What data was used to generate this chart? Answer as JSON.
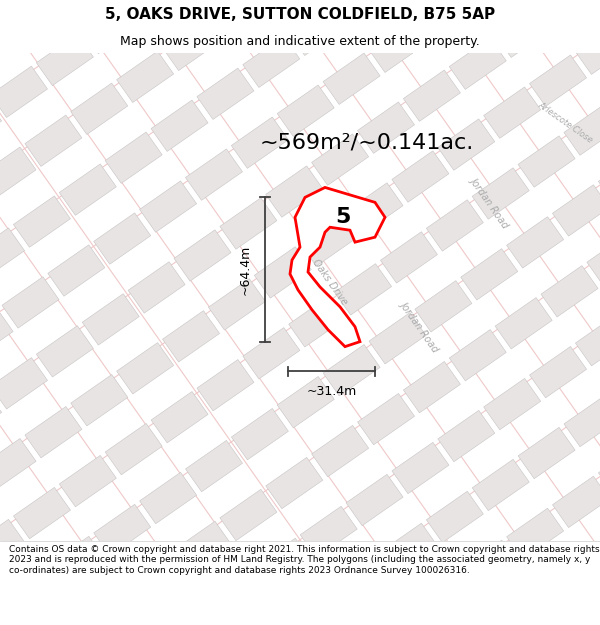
{
  "title_line1": "5, OAKS DRIVE, SUTTON COLDFIELD, B75 5AP",
  "title_line2": "Map shows position and indicative extent of the property.",
  "area_text": "~569m²/~0.141ac.",
  "dim_height": "~64.4m",
  "dim_width": "~31.4m",
  "label_number": "5",
  "road_label1": "Oaks Drive",
  "road_label2": "Jordan Road",
  "road_label3": "Jordan Road",
  "road_label4": "Arlescote Close",
  "footer_text": "Contains OS data © Crown copyright and database right 2021. This information is subject to Crown copyright and database rights 2023 and is reproduced with the permission of HM Land Registry. The polygons (including the associated geometry, namely x, y co-ordinates) are subject to Crown copyright and database rights 2023 Ordnance Survey 100026316.",
  "map_bg": "#faf8f8",
  "block_color_light": "#e8e4e4",
  "block_color_dark": "#d4d0d0",
  "road_line_color": "#f0c8c8",
  "road_line_color2": "#e0b8b8",
  "property_color": "#ff0000",
  "dim_color": "#404040",
  "figsize": [
    6.0,
    6.25
  ],
  "dpi": 100,
  "title_fontsize": 11,
  "subtitle_fontsize": 9,
  "area_fontsize": 16,
  "dim_fontsize": 9,
  "footer_fontsize": 6.5
}
